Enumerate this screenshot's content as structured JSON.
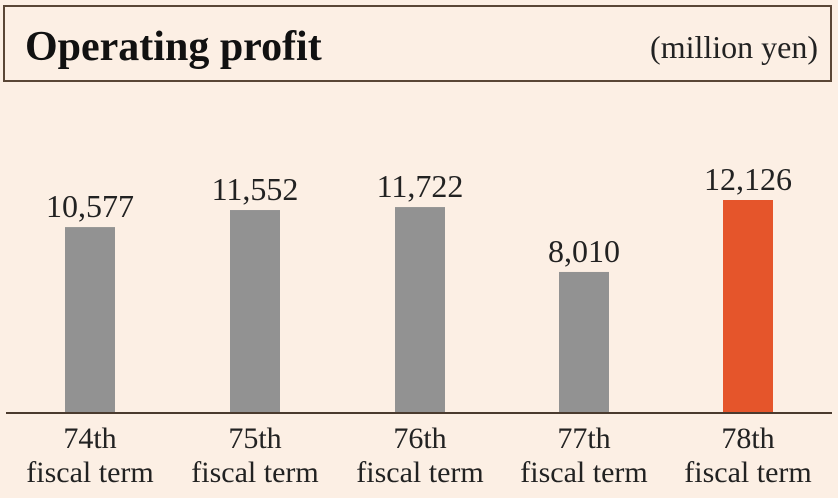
{
  "header": {
    "title": "Operating profit",
    "unit": "(million yen)"
  },
  "colors": {
    "bar": "#929292",
    "highlight": "#e5552b",
    "axis": "#4a3a2e",
    "text": "#222222",
    "background": "#fcefe4"
  },
  "chart_data": {
    "type": "bar",
    "title": "Operating profit",
    "ylabel": "",
    "xlabel": "",
    "unit": "(million yen)",
    "categories": [
      [
        "74th",
        "fiscal term"
      ],
      [
        "75th",
        "fiscal term"
      ],
      [
        "76th",
        "fiscal term"
      ],
      [
        "77th",
        "fiscal term"
      ],
      [
        "78th",
        "fiscal term"
      ]
    ],
    "values": [
      10577,
      11552,
      11722,
      8010,
      12126
    ],
    "value_labels": [
      "10,577",
      "11,552",
      "11,722",
      "8,010",
      "12,126"
    ],
    "highlight_index": 4,
    "ylim": [
      0,
      12126
    ],
    "grid": false,
    "legend": "none"
  }
}
